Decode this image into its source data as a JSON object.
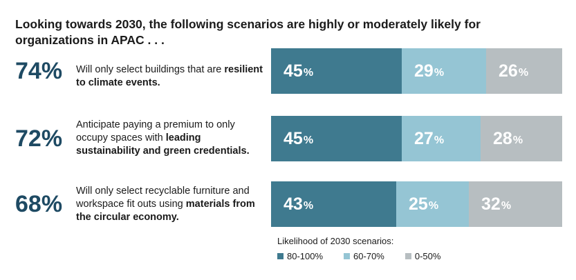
{
  "title": "Looking towards 2030, the following scenarios are highly or moderately likely for organizations in APAC  . . .",
  "colors": {
    "high": "#3f7a8f",
    "mid": "#95c5d4",
    "low": "#b7bec1",
    "headline": "#1e4a63"
  },
  "rows": [
    {
      "headline": "74%",
      "text_plain": "Will only select buildings that are ",
      "text_bold": "resilient to climate events."
    },
    {
      "headline": "72%",
      "text_plain": "Anticipate paying a premium to only occupy spaces with ",
      "text_bold": "leading sustainability and green credentials."
    },
    {
      "headline": "68%",
      "text_plain": "Will only select recyclable furniture and workspace fit outs using ",
      "text_bold": "materials from the circular economy."
    }
  ],
  "chart_data": {
    "type": "bar",
    "orientation": "horizontal-stacked",
    "categories": [
      "Will only select buildings that are resilient to climate events.",
      "Anticipate paying a premium to only occupy spaces with leading sustainability and green credentials.",
      "Will only select recyclable furniture and workspace fit outs using materials from the circular economy."
    ],
    "series": [
      {
        "name": "80-100%",
        "values": [
          45,
          45,
          43
        ],
        "labels": [
          "45",
          "45",
          "43"
        ]
      },
      {
        "name": "60-70%",
        "values": [
          29,
          27,
          25
        ],
        "labels": [
          "29",
          "27",
          "25"
        ]
      },
      {
        "name": "0-50%",
        "values": [
          26,
          28,
          32
        ],
        "labels": [
          "26",
          "28",
          "32"
        ]
      }
    ],
    "unit_symbol": "%",
    "legend_title": "Likelihood of 2030 scenarios:",
    "legend": [
      "80-100%",
      "60-70%",
      "0-50%"
    ],
    "xlim": [
      0,
      100
    ]
  }
}
